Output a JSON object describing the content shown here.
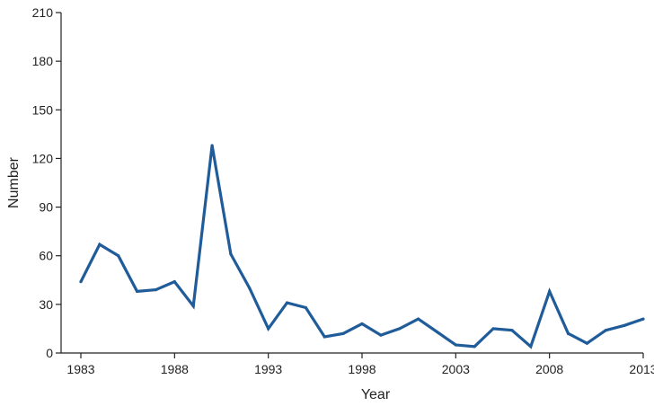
{
  "chart_data": {
    "type": "line",
    "title": "",
    "xlabel": "Year",
    "ylabel": "Number",
    "xlim": [
      1983,
      2013
    ],
    "ylim": [
      0,
      210
    ],
    "x_ticks": [
      1983,
      1988,
      1993,
      1998,
      2003,
      2008,
      2013
    ],
    "y_ticks": [
      0,
      30,
      60,
      90,
      120,
      150,
      180,
      210
    ],
    "grid": false,
    "legend": "none",
    "series": [
      {
        "color": "#1f5c99",
        "x": [
          1983,
          1984,
          1985,
          1986,
          1987,
          1988,
          1989,
          1990,
          1991,
          1992,
          1993,
          1994,
          1995,
          1996,
          1997,
          1998,
          1999,
          2000,
          2001,
          2002,
          2003,
          2004,
          2005,
          2006,
          2007,
          2008,
          2009,
          2010,
          2011,
          2012,
          2013
        ],
        "y": [
          44,
          67,
          60,
          38,
          39,
          44,
          29,
          128,
          61,
          40,
          15,
          31,
          28,
          10,
          12,
          18,
          11,
          15,
          21,
          13,
          5,
          4,
          15,
          14,
          4,
          38,
          12,
          6,
          14,
          17,
          21
        ]
      }
    ]
  }
}
